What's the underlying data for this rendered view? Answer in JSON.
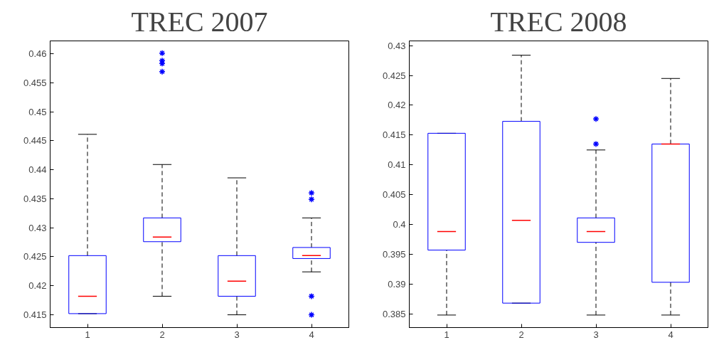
{
  "chart_data": [
    {
      "type": "box",
      "title": "TREC 2007",
      "categories": [
        "1",
        "2",
        "3",
        "4"
      ],
      "ylim": [
        0.4128,
        0.4622
      ],
      "yticks": [
        0.415,
        0.42,
        0.425,
        0.43,
        0.435,
        0.44,
        0.445,
        0.45,
        0.455,
        0.46
      ],
      "grid": false,
      "boxes": [
        {
          "low": 0.4152,
          "q1": 0.4152,
          "median": 0.4182,
          "q3": 0.4252,
          "high": 0.4461
        },
        {
          "low": 0.4182,
          "q1": 0.4276,
          "median": 0.4284,
          "q3": 0.4317,
          "high": 0.4409,
          "outliers": [
            0.4601,
            0.4588,
            0.4583,
            0.4569
          ]
        },
        {
          "low": 0.415,
          "q1": 0.4182,
          "median": 0.4208,
          "q3": 0.4252,
          "high": 0.4386
        },
        {
          "low": 0.4224,
          "q1": 0.4247,
          "median": 0.4252,
          "q3": 0.4266,
          "high": 0.4317,
          "outliers": [
            0.436,
            0.4349,
            0.4182,
            0.415
          ]
        }
      ]
    },
    {
      "type": "box",
      "title": "TREC 2008",
      "categories": [
        "1",
        "2",
        "3",
        "4"
      ],
      "ylim": [
        0.3827,
        0.4308
      ],
      "yticks": [
        0.385,
        0.39,
        0.395,
        0.4,
        0.405,
        0.41,
        0.415,
        0.42,
        0.425,
        0.43
      ],
      "grid": false,
      "boxes": [
        {
          "low": 0.3848,
          "q1": 0.3957,
          "median": 0.3988,
          "q3": 0.4153,
          "high": 0.4153
        },
        {
          "low": 0.3868,
          "q1": 0.3868,
          "median": 0.4007,
          "q3": 0.4173,
          "high": 0.4284
        },
        {
          "low": 0.3848,
          "q1": 0.397,
          "median": 0.3988,
          "q3": 0.4011,
          "high": 0.4125,
          "outliers": [
            0.4135,
            0.4177
          ]
        },
        {
          "low": 0.3848,
          "q1": 0.3903,
          "median": 0.4135,
          "q3": 0.4135,
          "high": 0.4245
        }
      ]
    }
  ]
}
